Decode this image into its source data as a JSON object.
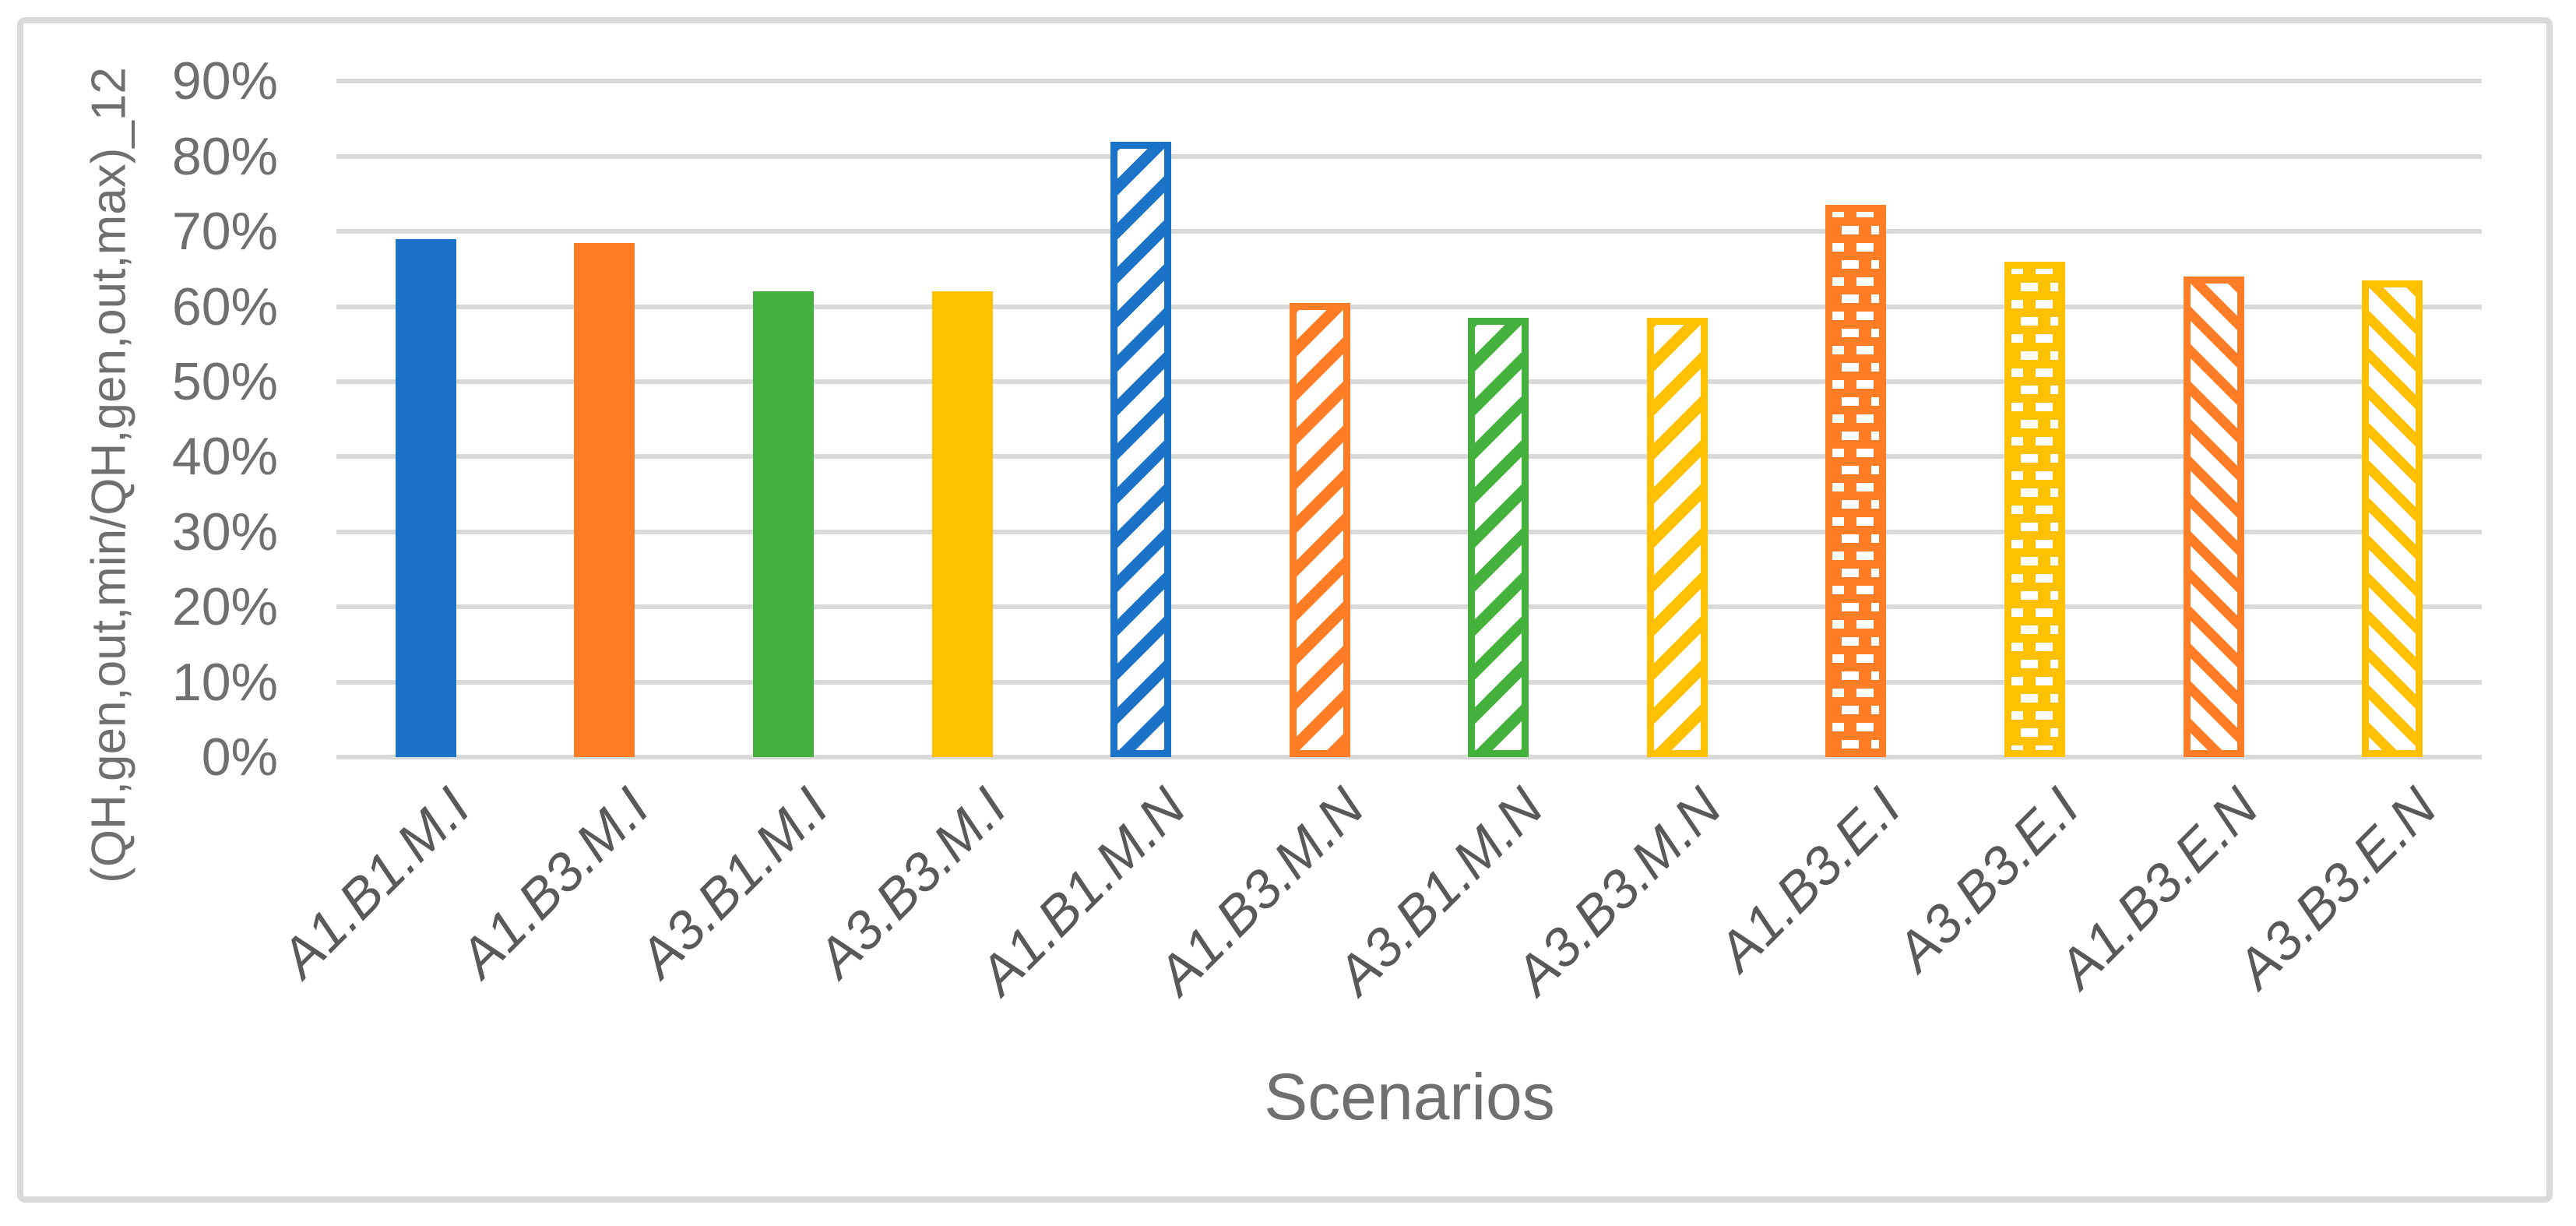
{
  "chart_data": {
    "type": "bar",
    "title": "",
    "xlabel": "Scenarios",
    "ylabel": "(QH,gen,out,min/QH,gen,out,max)_12",
    "unit": "%",
    "ylim": [
      0,
      90
    ],
    "y_tick_step": 10,
    "y_ticks": [
      "0%",
      "10%",
      "20%",
      "30%",
      "40%",
      "50%",
      "60%",
      "70%",
      "80%",
      "90%"
    ],
    "grid": true,
    "legend": "none",
    "categories": [
      "A1.B1.M.I",
      "A1.B3.M.I",
      "A3.B1.M.I",
      "A3.B3.M.I",
      "A1.B1.M.N",
      "A1.B3.M.N",
      "A3.B1.M.N",
      "A3.B3.M.N",
      "A1.B3.E.I",
      "A3.B3.E.I",
      "A1.B3.E.N",
      "A3.B3.E.N"
    ],
    "values": [
      69,
      68.5,
      62,
      62,
      82,
      60.5,
      58.5,
      58.5,
      73.5,
      66,
      64,
      63.5
    ],
    "bar_styles": [
      {
        "color": "#1B73C8",
        "pattern": "solid"
      },
      {
        "color": "#FC7D26",
        "pattern": "solid"
      },
      {
        "color": "#44B13C",
        "pattern": "solid"
      },
      {
        "color": "#FFC000",
        "pattern": "solid"
      },
      {
        "color": "#1B73C8",
        "pattern": "diagonal-up"
      },
      {
        "color": "#FC7D26",
        "pattern": "diagonal-up"
      },
      {
        "color": "#44B13C",
        "pattern": "diagonal-up"
      },
      {
        "color": "#FFC000",
        "pattern": "diagonal-up"
      },
      {
        "color": "#FC7D26",
        "pattern": "dotted-grid"
      },
      {
        "color": "#FFC000",
        "pattern": "dotted-grid"
      },
      {
        "color": "#FC7D26",
        "pattern": "diagonal-down"
      },
      {
        "color": "#FFC000",
        "pattern": "diagonal-down"
      }
    ]
  },
  "colors": {
    "gridline": "#D9D9D9",
    "frame_border": "#D9D9D9",
    "tick_text": "#6F6F6F",
    "category_text": "#595959",
    "axis_title_text": "#6F6F6F",
    "background": "#FFFFFF"
  }
}
